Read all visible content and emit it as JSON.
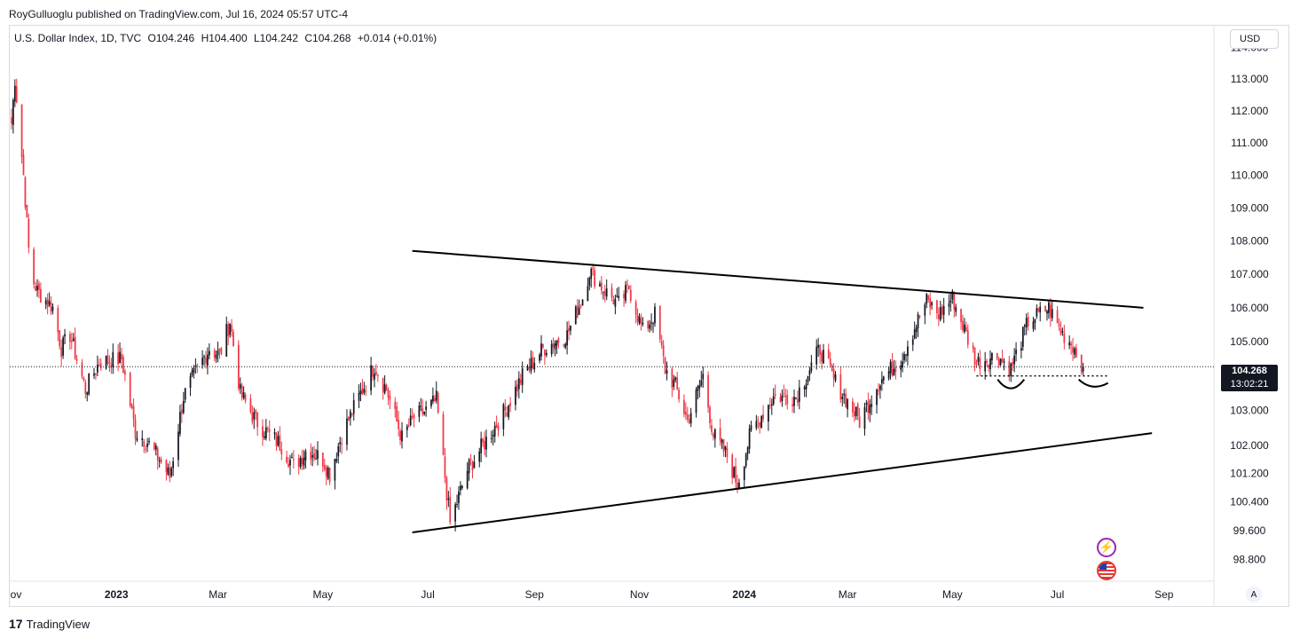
{
  "header": {
    "publisher_text": "RoyGulluoglu published on TradingView.com, Jul 16, 2024 05:57 UTC-4"
  },
  "legend": {
    "symbol": "U.S. Dollar Index, 1D, TVC",
    "open": "O104.246",
    "high": "H104.400",
    "low": "L104.242",
    "close": "C104.268",
    "change": "+0.014 (+0.01%)"
  },
  "currency_button": "USD",
  "auto_button": "A",
  "last_price": {
    "price": "104.268",
    "countdown": "13:02:21"
  },
  "brand": {
    "logo": "17",
    "name": "TradingView"
  },
  "icons": {
    "flash": "lightning-icon",
    "flag": "us-flag-icon"
  },
  "colors": {
    "up": "#131722",
    "down": "#f23645",
    "line": "#000000"
  },
  "chart_data": {
    "type": "candlestick",
    "symbol": "U.S. Dollar Index, 1D, TVC",
    "x_axis_labels": [
      "ov",
      "2023",
      "Mar",
      "May",
      "Jul",
      "Sep",
      "Nov",
      "2024",
      "Mar",
      "May",
      "Jul",
      "Sep"
    ],
    "y_axis_labels": [
      "114.000",
      "113.000",
      "112.000",
      "111.000",
      "110.000",
      "109.000",
      "108.000",
      "107.000",
      "106.000",
      "105.000",
      "103.000",
      "102.000",
      "101.200",
      "100.400",
      "99.600",
      "98.800"
    ],
    "y_scale": "log",
    "y_range": [
      98.2,
      114.1
    ],
    "x_range": [
      "2022-10-31",
      "2024-09-30"
    ],
    "last_close": 104.268,
    "path": [
      [
        "2022-11-01",
        111.6
      ],
      [
        "2022-11-03",
        113.0
      ],
      [
        "2022-11-08",
        110.0
      ],
      [
        "2022-11-12",
        107.0
      ],
      [
        "2022-11-16",
        106.5
      ],
      [
        "2022-11-25",
        106.0
      ],
      [
        "2022-11-30",
        104.8
      ],
      [
        "2022-12-05",
        105.2
      ],
      [
        "2022-12-14",
        103.6
      ],
      [
        "2022-12-22",
        104.4
      ],
      [
        "2023-01-04",
        104.5
      ],
      [
        "2023-01-12",
        102.4
      ],
      [
        "2023-01-19",
        102.1
      ],
      [
        "2023-01-26",
        101.6
      ],
      [
        "2023-02-01",
        101.1
      ],
      [
        "2023-02-09",
        103.4
      ],
      [
        "2023-02-16",
        104.1
      ],
      [
        "2023-02-24",
        104.8
      ],
      [
        "2023-03-02",
        104.6
      ],
      [
        "2023-03-08",
        105.6
      ],
      [
        "2023-03-14",
        103.5
      ],
      [
        "2023-03-23",
        102.7
      ],
      [
        "2023-03-31",
        102.3
      ],
      [
        "2023-04-07",
        102.0
      ],
      [
        "2023-04-14",
        101.4
      ],
      [
        "2023-04-22",
        101.9
      ],
      [
        "2023-05-01",
        101.6
      ],
      [
        "2023-05-05",
        101.2
      ],
      [
        "2023-05-12",
        102.3
      ],
      [
        "2023-05-23",
        103.5
      ],
      [
        "2023-05-31",
        104.3
      ],
      [
        "2023-06-07",
        103.6
      ],
      [
        "2023-06-16",
        102.2
      ],
      [
        "2023-06-23",
        102.8
      ],
      [
        "2023-06-30",
        103.0
      ],
      [
        "2023-07-06",
        103.3
      ],
      [
        "2023-07-14",
        99.8
      ],
      [
        "2023-07-24",
        101.3
      ],
      [
        "2023-08-02",
        102.0
      ],
      [
        "2023-08-15",
        103.0
      ],
      [
        "2023-08-25",
        104.0
      ],
      [
        "2023-09-06",
        104.8
      ],
      [
        "2023-09-20",
        105.2
      ],
      [
        "2023-09-29",
        106.3
      ],
      [
        "2023-10-03",
        107.1
      ],
      [
        "2023-10-12",
        106.5
      ],
      [
        "2023-10-20",
        106.1
      ],
      [
        "2023-10-26",
        106.6
      ],
      [
        "2023-11-03",
        105.3
      ],
      [
        "2023-11-10",
        105.8
      ],
      [
        "2023-11-16",
        104.2
      ],
      [
        "2023-11-22",
        103.7
      ],
      [
        "2023-11-29",
        102.7
      ],
      [
        "2023-12-08",
        104.0
      ],
      [
        "2023-12-14",
        102.3
      ],
      [
        "2023-12-22",
        101.7
      ],
      [
        "2023-12-28",
        100.9
      ],
      [
        "2024-01-05",
        102.4
      ],
      [
        "2024-01-18",
        103.4
      ],
      [
        "2024-01-31",
        103.4
      ],
      [
        "2024-02-14",
        104.8
      ],
      [
        "2024-02-22",
        103.9
      ],
      [
        "2024-03-08",
        102.7
      ],
      [
        "2024-03-19",
        103.8
      ],
      [
        "2024-04-01",
        104.5
      ],
      [
        "2024-04-16",
        106.2
      ],
      [
        "2024-04-23",
        105.8
      ],
      [
        "2024-05-01",
        106.3
      ],
      [
        "2024-05-15",
        104.4
      ],
      [
        "2024-05-27",
        104.6
      ],
      [
        "2024-06-04",
        104.2
      ],
      [
        "2024-06-14",
        105.6
      ],
      [
        "2024-06-26",
        106.0
      ],
      [
        "2024-07-03",
        105.3
      ],
      [
        "2024-07-10",
        104.9
      ],
      [
        "2024-07-16",
        104.268
      ]
    ],
    "drawings": {
      "upper_trendline": [
        [
          "2023-06-22",
          107.7
        ],
        [
          "2024-08-20",
          106.0
        ]
      ],
      "lower_trendline": [
        [
          "2023-06-22",
          99.55
        ],
        [
          "2024-08-25",
          102.35
        ]
      ],
      "support_dotted": [
        [
          "2024-05-15",
          104.0
        ],
        [
          "2024-07-31",
          104.0
        ]
      ]
    }
  }
}
